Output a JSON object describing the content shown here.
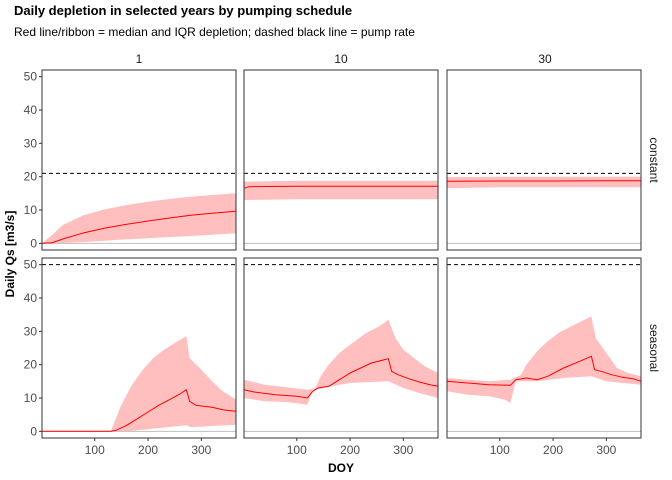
{
  "chart_data": {
    "type": "line",
    "title": "Daily depletion in selected years by pumping schedule",
    "subtitle": "Red line/ribbon = median and IQR depletion; dashed black line = pump rate",
    "xlabel": "DOY",
    "ylabel": "Daily Qs [m3/s]",
    "xlim": [
      1,
      365
    ],
    "ylim": [
      -2,
      52
    ],
    "x_ticks": [
      100,
      200,
      300
    ],
    "y_ticks": [
      0,
      10,
      20,
      30,
      40,
      50
    ],
    "columns": [
      "1",
      "10",
      "30"
    ],
    "rows": [
      "constant",
      "seasonal"
    ],
    "colors": {
      "median": "#ff0000",
      "iqr": "#ffbfbf",
      "pump": "#000000",
      "zero": "#bfbfbf"
    },
    "panels": [
      {
        "row": "constant",
        "col": "1",
        "pump_rate": 21,
        "median": [
          [
            1,
            0
          ],
          [
            20,
            0.2
          ],
          [
            40,
            1.3
          ],
          [
            80,
            3.2
          ],
          [
            120,
            4.6
          ],
          [
            160,
            5.7
          ],
          [
            200,
            6.7
          ],
          [
            240,
            7.6
          ],
          [
            280,
            8.4
          ],
          [
            320,
            9.0
          ],
          [
            365,
            9.6
          ]
        ],
        "q25": [
          [
            1,
            0
          ],
          [
            20,
            0
          ],
          [
            40,
            0.1
          ],
          [
            80,
            0.4
          ],
          [
            120,
            0.8
          ],
          [
            160,
            1.2
          ],
          [
            200,
            1.5
          ],
          [
            240,
            1.9
          ],
          [
            280,
            2.2
          ],
          [
            320,
            2.6
          ],
          [
            365,
            3.0
          ]
        ],
        "q75": [
          [
            1,
            0
          ],
          [
            20,
            2.5
          ],
          [
            40,
            5.5
          ],
          [
            80,
            8.5
          ],
          [
            120,
            10.2
          ],
          [
            160,
            11.5
          ],
          [
            200,
            12.5
          ],
          [
            240,
            13.3
          ],
          [
            280,
            14.0
          ],
          [
            320,
            14.5
          ],
          [
            365,
            15.0
          ]
        ]
      },
      {
        "row": "constant",
        "col": "10",
        "pump_rate": 21,
        "median": [
          [
            1,
            16.5
          ],
          [
            10,
            17.0
          ],
          [
            100,
            17.1
          ],
          [
            200,
            17.1
          ],
          [
            300,
            17.1
          ],
          [
            365,
            17.1
          ]
        ],
        "q25": [
          [
            1,
            13.0
          ],
          [
            100,
            13.2
          ],
          [
            200,
            13.2
          ],
          [
            300,
            13.2
          ],
          [
            365,
            13.2
          ]
        ],
        "q75": [
          [
            1,
            18.5
          ],
          [
            100,
            18.8
          ],
          [
            200,
            18.8
          ],
          [
            300,
            18.8
          ],
          [
            365,
            18.8
          ]
        ]
      },
      {
        "row": "constant",
        "col": "30",
        "pump_rate": 21,
        "median": [
          [
            1,
            18.6
          ],
          [
            100,
            18.7
          ],
          [
            200,
            18.7
          ],
          [
            300,
            18.8
          ],
          [
            365,
            18.8
          ]
        ],
        "q25": [
          [
            1,
            16.5
          ],
          [
            100,
            16.8
          ],
          [
            200,
            16.8
          ],
          [
            300,
            16.8
          ],
          [
            365,
            16.8
          ]
        ],
        "q75": [
          [
            1,
            19.8
          ],
          [
            100,
            20.0
          ],
          [
            200,
            20.0
          ],
          [
            300,
            20.0
          ],
          [
            365,
            20.0
          ]
        ]
      },
      {
        "row": "seasonal",
        "col": "1",
        "pump_rate": 50,
        "median": [
          [
            1,
            0
          ],
          [
            130,
            0
          ],
          [
            140,
            0.3
          ],
          [
            160,
            1.8
          ],
          [
            180,
            3.8
          ],
          [
            200,
            5.8
          ],
          [
            220,
            7.8
          ],
          [
            240,
            9.5
          ],
          [
            260,
            11.2
          ],
          [
            272,
            12.5
          ],
          [
            278,
            9
          ],
          [
            290,
            7.8
          ],
          [
            300,
            7.6
          ],
          [
            320,
            7.2
          ],
          [
            340,
            6.5
          ],
          [
            355,
            6.2
          ],
          [
            365,
            6.0
          ]
        ],
        "q25": [
          [
            1,
            0
          ],
          [
            130,
            0
          ],
          [
            160,
            0
          ],
          [
            200,
            0.6
          ],
          [
            240,
            1.3
          ],
          [
            272,
            1.8
          ],
          [
            280,
            1.2
          ],
          [
            320,
            1.6
          ],
          [
            365,
            2.0
          ]
        ],
        "q75": [
          [
            1,
            0
          ],
          [
            130,
            0
          ],
          [
            135,
            2
          ],
          [
            150,
            8
          ],
          [
            170,
            14
          ],
          [
            190,
            18.5
          ],
          [
            210,
            22
          ],
          [
            230,
            24.5
          ],
          [
            250,
            26.5
          ],
          [
            272,
            28.5
          ],
          [
            278,
            22
          ],
          [
            300,
            18.5
          ],
          [
            320,
            15
          ],
          [
            340,
            12
          ],
          [
            355,
            10.5
          ],
          [
            365,
            9.5
          ]
        ]
      },
      {
        "row": "seasonal",
        "col": "10",
        "pump_rate": 50,
        "median": [
          [
            1,
            12.5
          ],
          [
            20,
            11.8
          ],
          [
            60,
            11.0
          ],
          [
            100,
            10.5
          ],
          [
            120,
            10.0
          ],
          [
            130,
            12.0
          ],
          [
            140,
            13.0
          ],
          [
            160,
            13.5
          ],
          [
            180,
            15.5
          ],
          [
            200,
            17.5
          ],
          [
            220,
            19.0
          ],
          [
            240,
            20.5
          ],
          [
            272,
            21.8
          ],
          [
            278,
            18
          ],
          [
            290,
            17
          ],
          [
            310,
            15.8
          ],
          [
            330,
            14.8
          ],
          [
            350,
            14.0
          ],
          [
            365,
            13.5
          ]
        ],
        "q25": [
          [
            1,
            10.0
          ],
          [
            40,
            9.0
          ],
          [
            80,
            8.8
          ],
          [
            120,
            8.0
          ],
          [
            130,
            12.5
          ],
          [
            150,
            13.0
          ],
          [
            180,
            14.0
          ],
          [
            200,
            14.5
          ],
          [
            240,
            14.8
          ],
          [
            272,
            15.0
          ],
          [
            300,
            13.0
          ],
          [
            330,
            11.5
          ],
          [
            365,
            10.0
          ]
        ],
        "q75": [
          [
            1,
            15.5
          ],
          [
            40,
            14.0
          ],
          [
            80,
            13.2
          ],
          [
            120,
            12.5
          ],
          [
            135,
            13.0
          ],
          [
            145,
            16.5
          ],
          [
            160,
            20.0
          ],
          [
            180,
            23.5
          ],
          [
            200,
            26.0
          ],
          [
            230,
            29.5
          ],
          [
            255,
            31.5
          ],
          [
            272,
            33.5
          ],
          [
            285,
            28
          ],
          [
            300,
            24.5
          ],
          [
            320,
            22.0
          ],
          [
            340,
            19.5
          ],
          [
            365,
            17.5
          ]
        ]
      },
      {
        "row": "seasonal",
        "col": "30",
        "pump_rate": 50,
        "median": [
          [
            1,
            15.0
          ],
          [
            40,
            14.5
          ],
          [
            80,
            14.0
          ],
          [
            120,
            13.8
          ],
          [
            130,
            15.5
          ],
          [
            150,
            16.0
          ],
          [
            170,
            15.5
          ],
          [
            190,
            16.5
          ],
          [
            220,
            19.0
          ],
          [
            250,
            21.0
          ],
          [
            272,
            22.5
          ],
          [
            278,
            18.5
          ],
          [
            290,
            18.0
          ],
          [
            310,
            17.0
          ],
          [
            330,
            16.2
          ],
          [
            350,
            15.8
          ],
          [
            365,
            15.0
          ]
        ],
        "q25": [
          [
            1,
            12.0
          ],
          [
            40,
            11.0
          ],
          [
            80,
            10.5
          ],
          [
            110,
            9.5
          ],
          [
            120,
            8.5
          ],
          [
            130,
            15.0
          ],
          [
            170,
            15.0
          ],
          [
            220,
            16.0
          ],
          [
            272,
            16.5
          ],
          [
            300,
            15.0
          ],
          [
            330,
            14.5
          ],
          [
            365,
            14.0
          ]
        ],
        "q75": [
          [
            1,
            16.0
          ],
          [
            40,
            15.5
          ],
          [
            80,
            15.0
          ],
          [
            120,
            15.5
          ],
          [
            140,
            17.0
          ],
          [
            150,
            20.0
          ],
          [
            170,
            24.0
          ],
          [
            190,
            27.0
          ],
          [
            210,
            29.5
          ],
          [
            240,
            32.0
          ],
          [
            272,
            34.5
          ],
          [
            280,
            28
          ],
          [
            300,
            23.5
          ],
          [
            320,
            19.0
          ],
          [
            340,
            17.5
          ],
          [
            365,
            16.5
          ]
        ]
      }
    ]
  }
}
